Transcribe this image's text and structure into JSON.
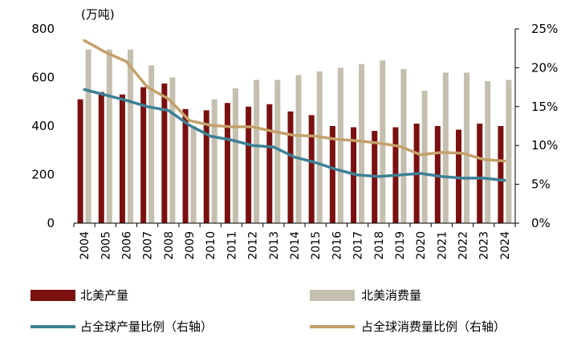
{
  "chart_data": {
    "type": "bar+line",
    "unit_label": "(万吨)",
    "categories": [
      "2004",
      "2005",
      "2006",
      "2007",
      "2008",
      "2009",
      "2010",
      "2011",
      "2012",
      "2013",
      "2014",
      "2015",
      "2016",
      "2017",
      "2018",
      "2019",
      "2020",
      "2021",
      "2022",
      "2023",
      "2024"
    ],
    "left_axis": {
      "min": 0,
      "max": 800,
      "ticks": [
        "0",
        "200",
        "400",
        "600",
        "800"
      ]
    },
    "right_axis": {
      "min": 0,
      "max": 25,
      "ticks": [
        "0%",
        "5%",
        "10%",
        "15%",
        "20%",
        "25%"
      ]
    },
    "bar_series": [
      {
        "name": "北美产量",
        "color": "#7B1010",
        "values": [
          510,
          540,
          530,
          560,
          575,
          470,
          465,
          495,
          480,
          490,
          460,
          445,
          400,
          395,
          380,
          395,
          410,
          400,
          385,
          410,
          400
        ]
      },
      {
        "name": "北美消费量",
        "color": "#C4BFAE",
        "values": [
          715,
          715,
          715,
          650,
          600,
          400,
          510,
          555,
          590,
          590,
          610,
          625,
          640,
          655,
          670,
          635,
          545,
          620,
          620,
          585,
          590
        ]
      }
    ],
    "line_series": [
      {
        "name": "占全球产量比例（右轴）",
        "color": "#3C8196",
        "values": [
          17.2,
          16.5,
          15.8,
          15.0,
          14.5,
          12.6,
          11.2,
          10.7,
          10.0,
          9.8,
          8.5,
          7.8,
          6.9,
          6.2,
          6.0,
          6.2,
          6.4,
          6.0,
          5.8,
          5.8,
          5.5
        ]
      },
      {
        "name": "占全球消费量比例（右轴）",
        "color": "#C4A06A",
        "values": [
          23.5,
          22.0,
          20.8,
          17.5,
          16.0,
          13.2,
          12.6,
          12.4,
          12.4,
          11.8,
          11.3,
          11.2,
          10.8,
          10.6,
          10.3,
          9.9,
          8.8,
          9.1,
          9.0,
          8.2,
          8.0
        ]
      }
    ],
    "legend": [
      "北美产量",
      "北美消费量",
      "占全球产量比例（右轴）",
      "占全球消费量比例（右轴）"
    ],
    "legend_position": "bottom"
  }
}
